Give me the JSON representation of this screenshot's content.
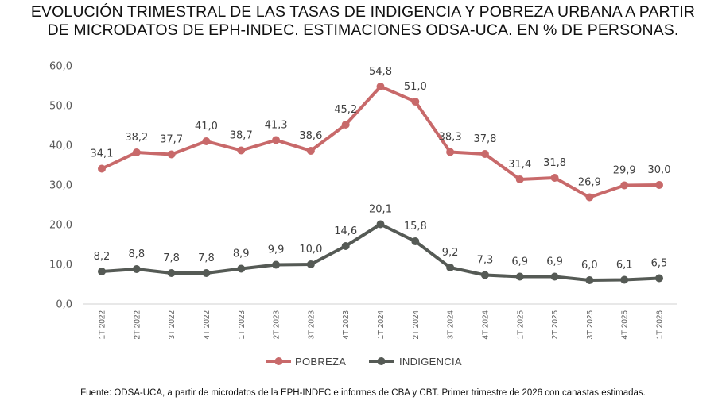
{
  "title_line1": "EVOLUCIÓN TRIMESTRAL DE LAS TASAS DE INDIGENCIA Y POBREZA URBANA A PARTIR",
  "title_line2": "DE MICRODATOS DE EPH-INDEC. ESTIMACIONES ODSA-UCA. EN % DE PERSONAS.",
  "source": "Fuente: ODSA-UCA, a partir de microdatos de la EPH-INDEC e informes de CBA y CBT. Primer trimestre de 2026 con canastas estimadas.",
  "chart_data": {
    "type": "line",
    "categories": [
      "1T 2022",
      "2T 2022",
      "3T 2022",
      "4T 2022",
      "1T 2023",
      "2T 2023",
      "3T 2023",
      "4T 2023",
      "1T 2024",
      "2T 2024",
      "3T 2024",
      "4T 2024",
      "1T 2025",
      "2T 2025",
      "3T 2025",
      "4T 2025",
      "1T 2026"
    ],
    "series": [
      {
        "name": "POBREZA",
        "color": "#c8696a",
        "values": [
          34.1,
          38.2,
          37.7,
          41.0,
          38.7,
          41.3,
          38.6,
          45.2,
          54.8,
          51.0,
          38.3,
          37.8,
          31.4,
          31.8,
          26.9,
          29.9,
          30.0
        ]
      },
      {
        "name": "INDIGENCIA",
        "color": "#555a55",
        "values": [
          8.2,
          8.8,
          7.8,
          7.8,
          8.9,
          9.9,
          10.0,
          14.6,
          20.1,
          15.8,
          9.2,
          7.3,
          6.9,
          6.9,
          6.0,
          6.1,
          6.5
        ]
      }
    ],
    "ylim": [
      0,
      60
    ],
    "yticks": [
      "0,0",
      "10,0",
      "20,0",
      "30,0",
      "40,0",
      "50,0",
      "60,0"
    ],
    "grid": false,
    "legend_position": "bottom",
    "data_labels": true,
    "decimal_separator": ","
  }
}
